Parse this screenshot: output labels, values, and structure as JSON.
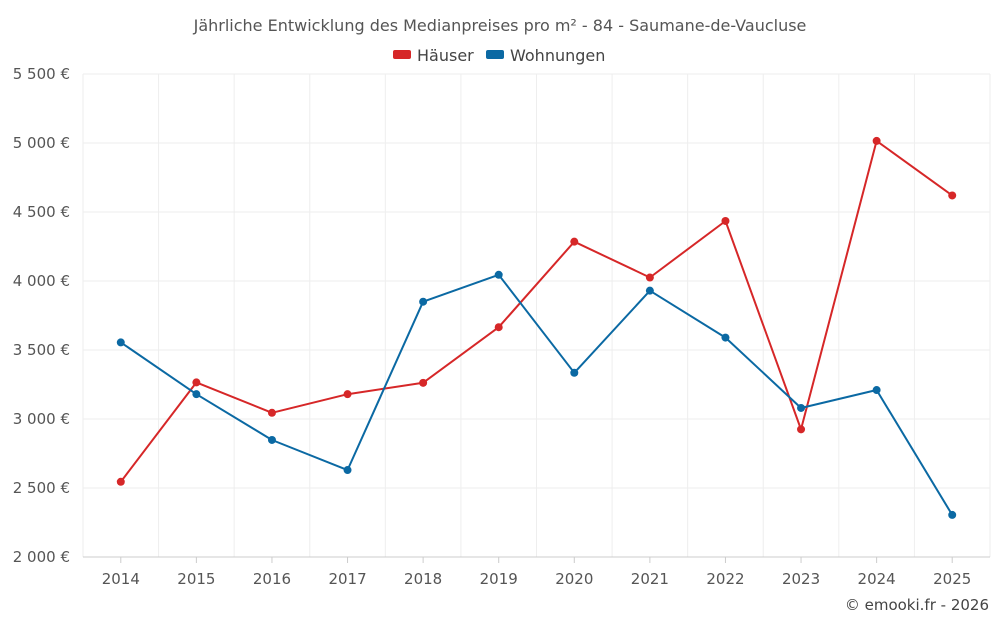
{
  "chart_data": {
    "type": "line",
    "title": "Jährliche Entwicklung des Medianpreises pro m² - 84 - Saumane-de-Vaucluse",
    "xlabel": "",
    "ylabel": "",
    "categories": [
      "2014",
      "2015",
      "2016",
      "2017",
      "2018",
      "2019",
      "2020",
      "2021",
      "2022",
      "2023",
      "2024",
      "2025"
    ],
    "ylim": [
      2000,
      5500
    ],
    "yticks": [
      2000,
      2500,
      3000,
      3500,
      4000,
      4500,
      5000,
      5500
    ],
    "ytick_labels": [
      "2 000 €",
      "2 500 €",
      "3 000 €",
      "3 500 €",
      "4 000 €",
      "4 500 €",
      "5 000 €",
      "5 500 €"
    ],
    "grid": true,
    "legend_position": "top-center",
    "series": [
      {
        "name": "Häuser",
        "color": "#d62728",
        "values": [
          2545,
          3265,
          3045,
          3180,
          3262,
          3665,
          4285,
          4025,
          4435,
          2925,
          5015,
          4620
        ]
      },
      {
        "name": "Wohnungen",
        "color": "#0b69a3",
        "values": [
          3555,
          3180,
          2848,
          2630,
          3850,
          4045,
          3335,
          3930,
          3590,
          3080,
          3210,
          2305
        ]
      }
    ],
    "credit": "© emooki.fr - 2026"
  }
}
